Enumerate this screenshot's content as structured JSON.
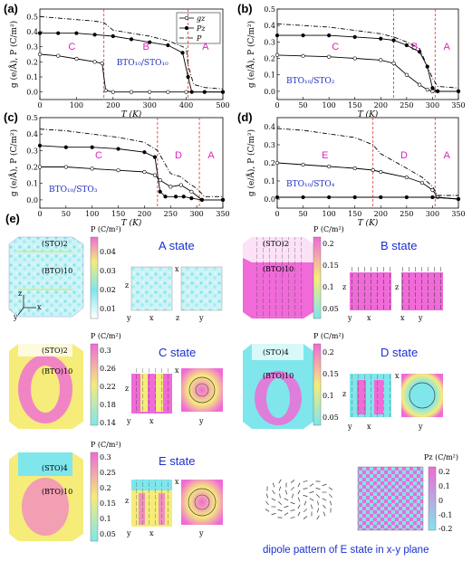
{
  "panels_top": [
    {
      "letter": "(a)",
      "system": "BTO10/STO10",
      "regions": [
        "C",
        "B",
        "A"
      ],
      "transitions": [
        175,
        405
      ],
      "xlim": [
        0,
        500
      ],
      "xticks": [
        "0",
        "100",
        "200",
        "300",
        "400",
        "500"
      ],
      "ylim": [
        -0.05,
        0.55
      ],
      "yticks": [
        "0.0",
        "0.1",
        "0.2",
        "0.3",
        "0.4",
        "0.5"
      ],
      "legend": [
        "g_z",
        "P_z",
        "P"
      ]
    },
    {
      "letter": "(b)",
      "system": "BTO10/STO2",
      "regions": [
        "C",
        "B",
        "A"
      ],
      "transitions": [
        225,
        305
      ],
      "xlim": [
        0,
        350
      ],
      "xticks": [
        "0",
        "50",
        "100",
        "150",
        "200",
        "250",
        "300",
        "350"
      ],
      "ylim": [
        -0.05,
        0.5
      ],
      "yticks": [
        "0.0",
        "0.1",
        "0.2",
        "0.3",
        "0.4",
        "0.5"
      ]
    },
    {
      "letter": "(c)",
      "system": "BTO10/STO3",
      "regions": [
        "C",
        "D",
        "A"
      ],
      "transitions": [
        225,
        305
      ],
      "xlim": [
        0,
        350
      ],
      "xticks": [
        "0",
        "50",
        "100",
        "150",
        "200",
        "250",
        "300",
        "350"
      ],
      "ylim": [
        -0.05,
        0.5
      ],
      "yticks": [
        "0.0",
        "0.1",
        "0.2",
        "0.3",
        "0.4",
        "0.5"
      ]
    },
    {
      "letter": "(d)",
      "system": "BTO10/STO4",
      "regions": [
        "E",
        "D",
        "A"
      ],
      "transitions": [
        185,
        305
      ],
      "xlim": [
        0,
        350
      ],
      "xticks": [
        "0",
        "50",
        "100",
        "150",
        "200",
        "250",
        "300",
        "350"
      ],
      "ylim": [
        -0.05,
        0.45
      ],
      "yticks": [
        "0.0",
        "0.1",
        "0.2",
        "0.3",
        "0.4"
      ]
    }
  ],
  "axis_labels": {
    "x": "T (K)",
    "y": "g (e/Å), P (C/m²)"
  },
  "chart_data": [
    {
      "type": "line",
      "panel": "(a)",
      "x_label": "T (K)",
      "y_label": "g (e/Å), P (C/m²)",
      "series": [
        {
          "name": "g_z",
          "x": [
            0,
            50,
            100,
            150,
            170,
            180,
            200,
            250,
            300,
            350,
            400,
            450,
            500
          ],
          "y": [
            0.25,
            0.24,
            0.22,
            0.2,
            0.19,
            0.01,
            0.0,
            0.0,
            0.0,
            0.0,
            0.0,
            0.0,
            0.0
          ]
        },
        {
          "name": "P_z",
          "x": [
            0,
            50,
            100,
            150,
            200,
            250,
            300,
            350,
            390,
            405,
            415,
            450,
            500
          ],
          "y": [
            0.39,
            0.39,
            0.39,
            0.38,
            0.37,
            0.35,
            0.33,
            0.31,
            0.26,
            0.1,
            0.0,
            0.0,
            0.0
          ]
        },
        {
          "name": "P",
          "x": [
            0,
            50,
            100,
            150,
            175,
            200,
            250,
            300,
            350,
            400,
            405,
            420,
            450,
            500
          ],
          "y": [
            0.5,
            0.49,
            0.48,
            0.47,
            0.46,
            0.41,
            0.39,
            0.37,
            0.34,
            0.29,
            0.18,
            0.05,
            0.03,
            0.02
          ]
        }
      ]
    },
    {
      "type": "line",
      "panel": "(b)",
      "x_label": "T (K)",
      "y_label": "g (e/Å), P (C/m²)",
      "series": [
        {
          "name": "g_z",
          "x": [
            0,
            50,
            100,
            150,
            200,
            225,
            250,
            275,
            290,
            300,
            310,
            350
          ],
          "y": [
            0.22,
            0.215,
            0.21,
            0.2,
            0.19,
            0.17,
            0.1,
            0.04,
            0.01,
            0.0,
            0.0,
            0.0
          ]
        },
        {
          "name": "P_z",
          "x": [
            0,
            50,
            100,
            150,
            200,
            225,
            250,
            275,
            290,
            300,
            310,
            350
          ],
          "y": [
            0.34,
            0.34,
            0.34,
            0.33,
            0.32,
            0.31,
            0.28,
            0.24,
            0.15,
            0.02,
            0.0,
            0.0
          ]
        },
        {
          "name": "P",
          "x": [
            0,
            50,
            100,
            150,
            200,
            225,
            250,
            275,
            300,
            310,
            350
          ],
          "y": [
            0.41,
            0.4,
            0.39,
            0.37,
            0.35,
            0.33,
            0.3,
            0.26,
            0.08,
            0.03,
            0.02
          ]
        }
      ]
    },
    {
      "type": "line",
      "panel": "(c)",
      "x_label": "T (K)",
      "y_label": "g (e/Å), P (C/m²)",
      "series": [
        {
          "name": "g_z",
          "x": [
            0,
            50,
            100,
            150,
            200,
            220,
            230,
            250,
            270,
            290,
            310,
            350
          ],
          "y": [
            0.2,
            0.2,
            0.19,
            0.18,
            0.17,
            0.15,
            0.12,
            0.08,
            0.09,
            0.05,
            0.0,
            0.0
          ]
        },
        {
          "name": "P_z",
          "x": [
            0,
            50,
            100,
            150,
            200,
            220,
            230,
            240,
            260,
            275,
            290,
            310,
            350
          ],
          "y": [
            0.33,
            0.32,
            0.32,
            0.31,
            0.29,
            0.26,
            0.05,
            0.02,
            0.02,
            0.02,
            0.01,
            0.0,
            0.0
          ]
        },
        {
          "name": "P",
          "x": [
            0,
            50,
            100,
            150,
            200,
            225,
            250,
            270,
            285,
            300,
            315,
            350
          ],
          "y": [
            0.43,
            0.42,
            0.4,
            0.38,
            0.35,
            0.3,
            0.16,
            0.14,
            0.1,
            0.07,
            0.02,
            0.02
          ]
        }
      ]
    },
    {
      "type": "line",
      "panel": "(d)",
      "x_label": "T (K)",
      "y_label": "g (e/Å), P (C/m²)",
      "series": [
        {
          "name": "g_z",
          "x": [
            0,
            50,
            100,
            150,
            185,
            200,
            250,
            280,
            300,
            310,
            350
          ],
          "y": [
            0.2,
            0.19,
            0.18,
            0.17,
            0.16,
            0.15,
            0.12,
            0.09,
            0.05,
            0.01,
            0.0
          ]
        },
        {
          "name": "P_z",
          "x": [
            0,
            50,
            100,
            150,
            200,
            250,
            300,
            350
          ],
          "y": [
            0.01,
            0.01,
            0.01,
            0.01,
            0.01,
            0.01,
            0.01,
            0.0
          ]
        },
        {
          "name": "P",
          "x": [
            0,
            50,
            100,
            150,
            185,
            200,
            250,
            280,
            300,
            310,
            350
          ],
          "y": [
            0.39,
            0.38,
            0.36,
            0.34,
            0.3,
            0.25,
            0.17,
            0.12,
            0.07,
            0.02,
            0.02
          ]
        }
      ]
    }
  ],
  "panel_e": {
    "letter": "(e)",
    "states": [
      {
        "title": "A state",
        "top_label": "(STO)2",
        "bottom_label": "(BTO)10",
        "cb_title": "P (C/m²)",
        "cb_ticks": [
          "0.04",
          "0.03",
          "0.02",
          "0.01"
        ]
      },
      {
        "title": "B state",
        "top_label": "(STO)2",
        "bottom_label": "(BTO)10",
        "cb_title": "P (C/m²)",
        "cb_ticks": [
          "0.2",
          "0.15",
          "0.1",
          "0.05"
        ]
      },
      {
        "title": "C state",
        "top_label": "(STO)2",
        "bottom_label": "(BTO)10",
        "cb_title": "P (C/m²)",
        "cb_ticks": [
          "0.3",
          "0.26",
          "0.22",
          "0.18",
          "0.14"
        ]
      },
      {
        "title": "D state",
        "top_label": "(STO)4",
        "bottom_label": "(BTO)10",
        "cb_title": "P (C/m²)",
        "cb_ticks": [
          "0.2",
          "0.15",
          "0.1",
          "0.05"
        ]
      },
      {
        "title": "E state",
        "top_label": "(STO)4",
        "bottom_label": "(BTO)10",
        "cb_title": "P (C/m²)",
        "cb_ticks": [
          "0.3",
          "0.25",
          "0.2",
          "0.15",
          "0.1",
          "0.05"
        ]
      }
    ],
    "dipole_caption": "dipole pattern of E state in x-y plane",
    "pz_cb_title": "Pz (C/m²)",
    "pz_cb_ticks": [
      "0.2",
      "0.1",
      "0",
      "-0.1",
      "-0.2"
    ]
  },
  "colors": {
    "cyan": "#7fe6ec",
    "magenta": "#f06ad8",
    "yellow": "#f5ec7a",
    "title_blue": "#1a30d0",
    "region_pink": "#e020c0",
    "dashed_red": "#e03030"
  }
}
